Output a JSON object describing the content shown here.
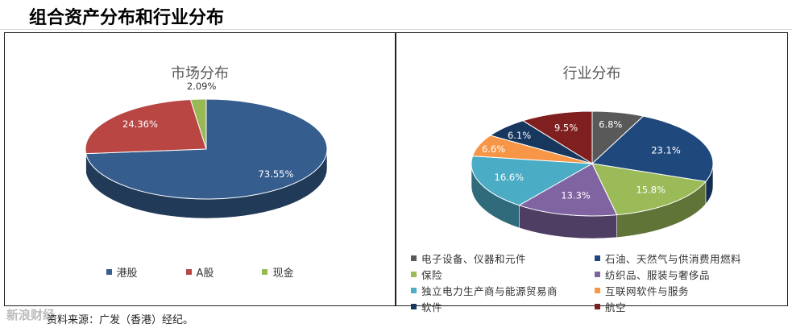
{
  "heading": "组合资产分布和行业分布",
  "source": "资料来源：广发（香港）经纪。",
  "watermark": "新浪财经",
  "chart_data": [
    {
      "type": "pie",
      "title": "市场分布",
      "categories": [
        "港股",
        "A股",
        "现金"
      ],
      "values": [
        73.55,
        24.36,
        2.09
      ],
      "data_labels": [
        "73.55%",
        "24.36%",
        "2.09%"
      ],
      "colors": [
        "#355d8e",
        "#b94643",
        "#98b954"
      ],
      "legend": "bottom"
    },
    {
      "type": "pie",
      "title": "行业分布",
      "categories": [
        "电子设备、仪器和元件",
        "石油、天然气与供消费用燃料",
        "保险",
        "纺织品、服装与奢侈品",
        "独立电力生产商与能源贸易商",
        "互联网软件与服务",
        "软件",
        "航空"
      ],
      "values": [
        6.8,
        23.1,
        15.8,
        13.3,
        16.6,
        6.6,
        6.1,
        9.5
      ],
      "data_labels": [
        "6.8%",
        "23.1%",
        "15.8%",
        "13.3%",
        "16.6%",
        "6.6%",
        "6.1%",
        "9.5%"
      ],
      "colors": [
        "#595959",
        "#1f497d",
        "#9bbb59",
        "#8064a2",
        "#4bacc6",
        "#f79646",
        "#17375e",
        "#7f1f1f"
      ],
      "legend": "bottom"
    }
  ]
}
